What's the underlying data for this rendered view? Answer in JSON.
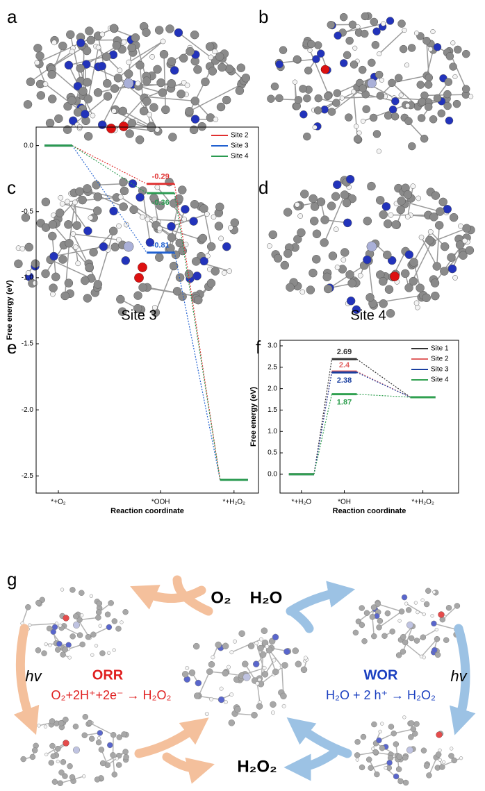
{
  "panel_labels": [
    "a",
    "b",
    "c",
    "d",
    "e",
    "f",
    "g"
  ],
  "site_labels": [
    "Site 3",
    "Site 4"
  ],
  "chart_data": [
    {
      "type": "energy_profile",
      "xlabel": "Reaction coordinate",
      "ylabel": "Free energy (eV)",
      "categories": [
        "*+O₂",
        "*OOH",
        "*+H₂O₂"
      ],
      "series": [
        {
          "name": "Site 2",
          "color": "#e03030",
          "values": [
            0,
            -0.29,
            -2.53
          ]
        },
        {
          "name": "Site 3",
          "color": "#2060d0",
          "values": [
            0,
            -0.81,
            -2.53
          ]
        },
        {
          "name": "Site 4",
          "color": "#2a9a50",
          "values": [
            0,
            -0.36,
            -2.53
          ]
        }
      ],
      "ylim": [
        -2.63,
        0.14
      ],
      "yticks": [
        {
          "value": 0,
          "label": "0.0"
        },
        -0.5,
        {
          "value": -1,
          "label": "-1.0"
        },
        -1.5,
        {
          "value": -2,
          "label": "-2.0"
        },
        -2.5
      ],
      "legend": "upper right"
    },
    {
      "type": "energy_profile",
      "xlabel": "Reaction coordinate",
      "ylabel": "Free energy (eV)",
      "categories": [
        "*+H₂O",
        "*OH",
        "*+H₂O₂"
      ],
      "series": [
        {
          "name": "Site 1",
          "color": "#333333",
          "values": [
            0,
            2.69,
            1.8
          ]
        },
        {
          "name": "Site 2",
          "color": "#e06060",
          "values": [
            0,
            2.4,
            1.8
          ]
        },
        {
          "name": "Site 3",
          "color": "#1a3fa0",
          "values": [
            0,
            2.38,
            1.8
          ]
        },
        {
          "name": "Site 4",
          "color": "#30a050",
          "values": [
            0,
            1.87,
            1.8
          ]
        }
      ],
      "ylim": [
        -0.44,
        3.13
      ],
      "yticks": [
        {
          "value": 0,
          "label": "0.0"
        },
        0.5,
        {
          "value": 1,
          "label": "1.0"
        },
        1.5,
        {
          "value": 2,
          "label": "2.0"
        },
        2.5,
        {
          "value": 3,
          "label": "3.0"
        }
      ],
      "legend": "upper right"
    }
  ],
  "diagram": {
    "o2": "O₂",
    "h2o": "H₂O",
    "h2o2": "H₂O₂",
    "hv": "hv",
    "orr": "ORR",
    "orr_equation": "O₂+2H⁺+2e⁻ → H₂O₂",
    "wor": "WOR",
    "wor_equation": "H₂O + 2 h⁺ → H₂O₂"
  }
}
